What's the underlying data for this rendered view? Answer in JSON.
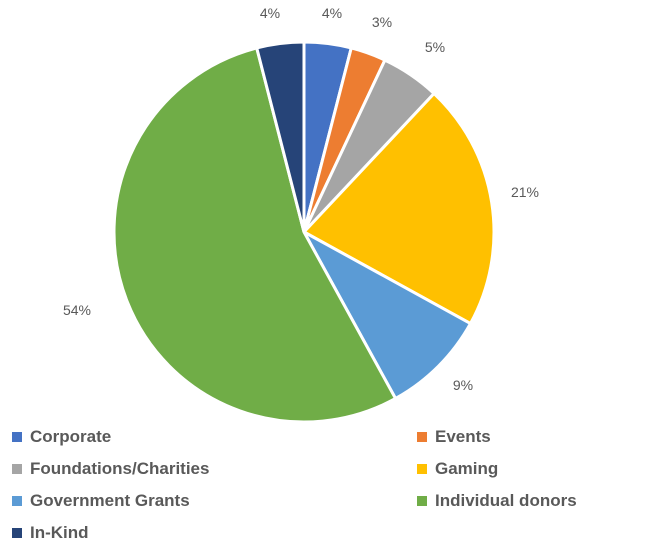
{
  "chart_data": {
    "type": "pie",
    "categories": [
      "Corporate",
      "Events",
      "Foundations/Charities",
      "Gaming",
      "Government Grants",
      "Individual donors",
      "In-Kind"
    ],
    "values": [
      4,
      3,
      5,
      21,
      9,
      54,
      4
    ],
    "labels": [
      "4%",
      "3%",
      "5%",
      "21%",
      "9%",
      "54%",
      "4%"
    ],
    "colors": [
      "#4472C4",
      "#ED7D31",
      "#A5A5A5",
      "#FFC000",
      "#5B9BD5",
      "#70AD47",
      "#264478"
    ],
    "legend_position": "bottom",
    "start_angle": "top, clockwise"
  }
}
